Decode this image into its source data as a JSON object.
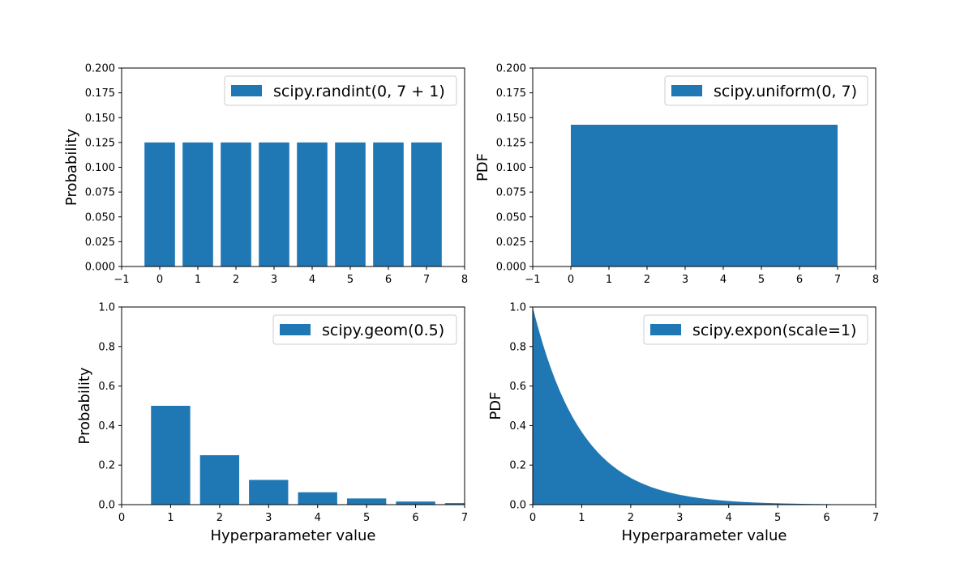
{
  "colors": {
    "series": "#1f77b4",
    "axis": "#000000",
    "legend_border": "#cccccc"
  },
  "chart_data": [
    {
      "type": "bar",
      "legend": "scipy.randint(0, 7 + 1)",
      "legend_loc": "upper right",
      "ylabel": "Probability",
      "xlabel": "",
      "xlim": [
        -1,
        8
      ],
      "ylim": [
        0,
        0.2
      ],
      "x": [
        0,
        1,
        2,
        3,
        4,
        5,
        6,
        7
      ],
      "values": [
        0.125,
        0.125,
        0.125,
        0.125,
        0.125,
        0.125,
        0.125,
        0.125
      ],
      "bar_width": 0.8,
      "xticks": [
        "−1",
        "0",
        "1",
        "2",
        "3",
        "4",
        "5",
        "6",
        "7",
        "8"
      ],
      "yticks": [
        "0.000",
        "0.025",
        "0.050",
        "0.075",
        "0.100",
        "0.125",
        "0.150",
        "0.175",
        "0.200"
      ]
    },
    {
      "type": "area",
      "legend": "scipy.uniform(0, 7)",
      "legend_loc": "upper right",
      "ylabel": "PDF",
      "xlabel": "",
      "xlim": [
        -1,
        8
      ],
      "ylim": [
        0,
        0.2
      ],
      "x": [
        0,
        7
      ],
      "y": [
        0.142857,
        0.142857
      ],
      "xticks": [
        "−1",
        "0",
        "1",
        "2",
        "3",
        "4",
        "5",
        "6",
        "7",
        "8"
      ],
      "yticks": [
        "0.000",
        "0.025",
        "0.050",
        "0.075",
        "0.100",
        "0.125",
        "0.150",
        "0.175",
        "0.200"
      ]
    },
    {
      "type": "bar",
      "legend": "scipy.geom(0.5)",
      "legend_loc": "upper right",
      "ylabel": "Probability",
      "xlabel": "Hyperparameter value",
      "xlim": [
        0,
        7
      ],
      "ylim": [
        0,
        1.0
      ],
      "x": [
        1,
        2,
        3,
        4,
        5,
        6,
        7
      ],
      "values": [
        0.5,
        0.25,
        0.125,
        0.0625,
        0.03125,
        0.015625,
        0.0078125
      ],
      "bar_width": 0.8,
      "xticks": [
        "0",
        "1",
        "2",
        "3",
        "4",
        "5",
        "6",
        "7"
      ],
      "yticks": [
        "0.0",
        "0.2",
        "0.4",
        "0.6",
        "0.8",
        "1.0"
      ]
    },
    {
      "type": "area",
      "legend": "scipy.expon(scale=1)",
      "legend_loc": "upper right",
      "ylabel": "PDF",
      "xlabel": "Hyperparameter value",
      "xlim": [
        0,
        7
      ],
      "ylim": [
        0,
        1.0
      ],
      "function": "exp(-x)",
      "x": [
        0,
        0.5,
        1,
        1.5,
        2,
        2.5,
        3,
        3.5,
        4,
        4.5,
        5,
        5.5,
        6,
        6.5,
        7
      ],
      "y": [
        1.0,
        0.6065,
        0.3679,
        0.2231,
        0.1353,
        0.0821,
        0.0498,
        0.0302,
        0.0183,
        0.0111,
        0.0067,
        0.0041,
        0.0025,
        0.0015,
        0.0009
      ],
      "xticks": [
        "0",
        "1",
        "2",
        "3",
        "4",
        "5",
        "6",
        "7"
      ],
      "yticks": [
        "0.0",
        "0.2",
        "0.4",
        "0.6",
        "0.8",
        "1.0"
      ]
    }
  ]
}
